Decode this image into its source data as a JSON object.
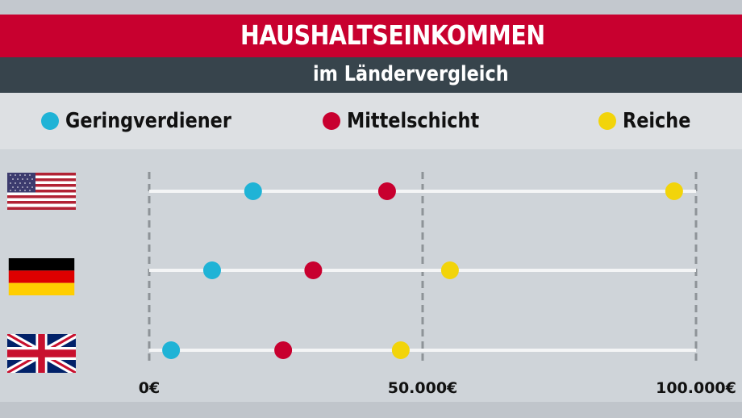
{
  "header": {
    "title": "HAUSHALTSEINKOMMEN",
    "subtitle": "im Ländervergleich"
  },
  "colors": {
    "red_band": "#c8002f",
    "dark_band": "#37444c",
    "low": "#1fb3d6",
    "middle": "#c8002f",
    "rich": "#f2d40a"
  },
  "chart_data": {
    "type": "scatter",
    "title": "HAUSHALTSEINKOMMEN",
    "subtitle": "im Ländervergleich",
    "xlim": [
      0,
      100000
    ],
    "x_ticks": [
      0,
      50000,
      100000
    ],
    "x_tick_labels": [
      "0€",
      "50.000€",
      "100.000€"
    ],
    "legend_position": "top",
    "categories": [
      "us-flag-icon",
      "de-flag-icon",
      "uk-flag-icon"
    ],
    "series": [
      {
        "name": "Geringverdiener",
        "color": "#1fb3d6",
        "values": [
          19000,
          11500,
          4000
        ]
      },
      {
        "name": "Mittelschicht",
        "color": "#c8002f",
        "values": [
          43500,
          30000,
          24500
        ]
      },
      {
        "name": "Reiche",
        "color": "#f2d40a",
        "values": [
          96000,
          55000,
          46000
        ]
      }
    ]
  }
}
